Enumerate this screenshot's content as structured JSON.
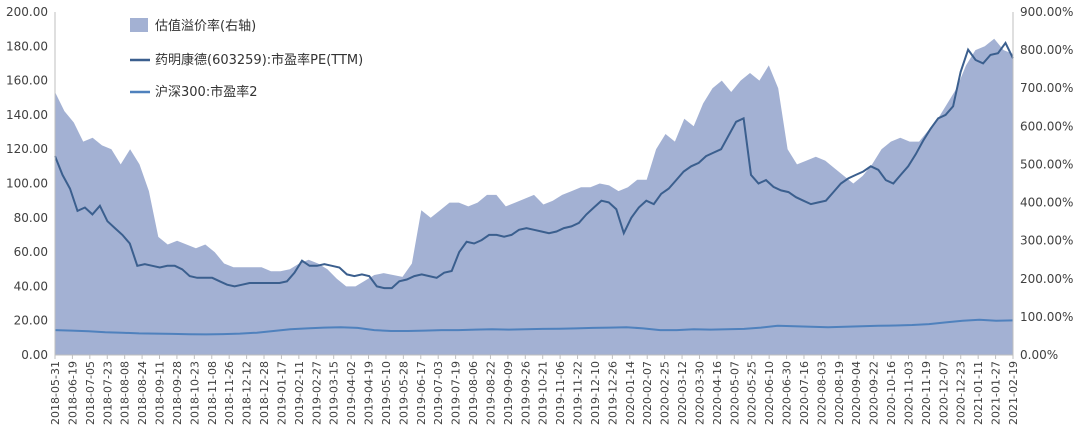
{
  "chart_data": {
    "type": "line",
    "title": "",
    "xlabel": "",
    "ylabel": "",
    "legend_position": "top-left",
    "grid": false,
    "y_left": {
      "range": [
        0,
        200
      ],
      "ticks": [
        "0.00",
        "20.00",
        "40.00",
        "60.00",
        "80.00",
        "100.00",
        "120.00",
        "140.00",
        "160.00",
        "180.00",
        "200.00"
      ]
    },
    "y_right": {
      "range": [
        0,
        900
      ],
      "ticks": [
        "0.00%",
        "100.00%",
        "200.00%",
        "300.00%",
        "400.00%",
        "500.00%",
        "600.00%",
        "700.00%",
        "800.00%",
        "900.00%"
      ]
    },
    "x_tick_labels": [
      "2018-05-31",
      "2018-06-19",
      "2018-07-05",
      "2018-07-23",
      "2018-08-08",
      "2018-08-24",
      "2018-09-11",
      "2018-09-28",
      "2018-10-23",
      "2018-11-08",
      "2018-11-26",
      "2018-12-12",
      "2018-12-28",
      "2019-01-17",
      "2019-02-11",
      "2019-02-27",
      "2019-03-15",
      "2019-04-02",
      "2019-04-19",
      "2019-05-10",
      "2019-05-28",
      "2019-06-17",
      "2019-07-03",
      "2019-07-19",
      "2019-08-06",
      "2019-08-22",
      "2019-09-09",
      "2019-09-26",
      "2019-10-21",
      "2019-11-06",
      "2019-11-22",
      "2019-12-10",
      "2019-12-26",
      "2020-01-14",
      "2020-02-07",
      "2020-02-25",
      "2020-03-12",
      "2020-03-30",
      "2020-04-16",
      "2020-05-07",
      "2020-05-25",
      "2020-06-10",
      "2020-06-30",
      "2020-07-16",
      "2020-08-03",
      "2020-08-19",
      "2020-09-04",
      "2020-09-22",
      "2020-10-16",
      "2020-11-03",
      "2020-11-19",
      "2020-12-07",
      "2020-12-23",
      "2021-01-11",
      "2021-01-27",
      "2021-02-19"
    ],
    "series": [
      {
        "name": "估值溢价率(右轴)",
        "type": "area",
        "axis": "right",
        "color": "#a3b1d3",
        "values": [
          690,
          640,
          610,
          560,
          570,
          550,
          540,
          500,
          540,
          500,
          430,
          310,
          290,
          300,
          290,
          280,
          290,
          270,
          240,
          230,
          230,
          230,
          230,
          220,
          220,
          225,
          240,
          250,
          240,
          225,
          200,
          180,
          180,
          195,
          210,
          215,
          210,
          205,
          240,
          380,
          360,
          380,
          400,
          400,
          390,
          400,
          420,
          420,
          390,
          400,
          410,
          420,
          395,
          405,
          420,
          430,
          440,
          440,
          450,
          445,
          430,
          440,
          460,
          460,
          540,
          580,
          560,
          620,
          600,
          660,
          700,
          720,
          690,
          720,
          740,
          720,
          760,
          700,
          540,
          500,
          510,
          520,
          510,
          490,
          470,
          450,
          470,
          500,
          540,
          560,
          570,
          560,
          560,
          590,
          620,
          660,
          700,
          760,
          800,
          810,
          830,
          800,
          790
        ]
      },
      {
        "name": "药明康德(603259):市盈率PE(TTM)",
        "type": "line",
        "axis": "left",
        "color": "#3b5f8e",
        "values": [
          116,
          105,
          97,
          84,
          86,
          82,
          87,
          78,
          74,
          70,
          65,
          52,
          53,
          52,
          51,
          52,
          52,
          50,
          46,
          45,
          45,
          45,
          43,
          41,
          40,
          41,
          42,
          42,
          42,
          42,
          42,
          43,
          48,
          55,
          52,
          52,
          53,
          52,
          51,
          47,
          46,
          47,
          46,
          40,
          39,
          39,
          43,
          44,
          46,
          47,
          46,
          45,
          48,
          49,
          60,
          66,
          65,
          67,
          70,
          70,
          69,
          70,
          73,
          74,
          73,
          72,
          71,
          72,
          74,
          75,
          77,
          82,
          86,
          90,
          89,
          85,
          71,
          80,
          86,
          90,
          88,
          94,
          97,
          102,
          107,
          110,
          112,
          116,
          118,
          120,
          128,
          136,
          138,
          105,
          100,
          102,
          98,
          96,
          95,
          92,
          90,
          88,
          89,
          90,
          95,
          100,
          103,
          105,
          107,
          110,
          108,
          102,
          100,
          105,
          110,
          117,
          125,
          132,
          138,
          140,
          145,
          165,
          178,
          172,
          170,
          175,
          176,
          182,
          173
        ]
      },
      {
        "name": "沪深300:市盈率2",
        "type": "line",
        "axis": "left",
        "color": "#4f81bd",
        "values": [
          14.5,
          14.2,
          13.8,
          13.3,
          13.0,
          12.6,
          12.5,
          12.3,
          12.1,
          12.0,
          12.2,
          12.5,
          13.0,
          14.0,
          15.0,
          15.5,
          16.0,
          16.2,
          15.8,
          14.5,
          14.0,
          14.0,
          14.2,
          14.5,
          14.5,
          14.8,
          15.0,
          14.8,
          15.0,
          15.2,
          15.3,
          15.5,
          15.8,
          16.0,
          16.2,
          15.5,
          14.5,
          14.5,
          15.0,
          14.8,
          15.0,
          15.2,
          16.0,
          17.0,
          16.8,
          16.5,
          16.2,
          16.5,
          16.8,
          17.0,
          17.2,
          17.5,
          18.0,
          19.0,
          20.0,
          20.5,
          20.0,
          20.2
        ]
      }
    ]
  }
}
